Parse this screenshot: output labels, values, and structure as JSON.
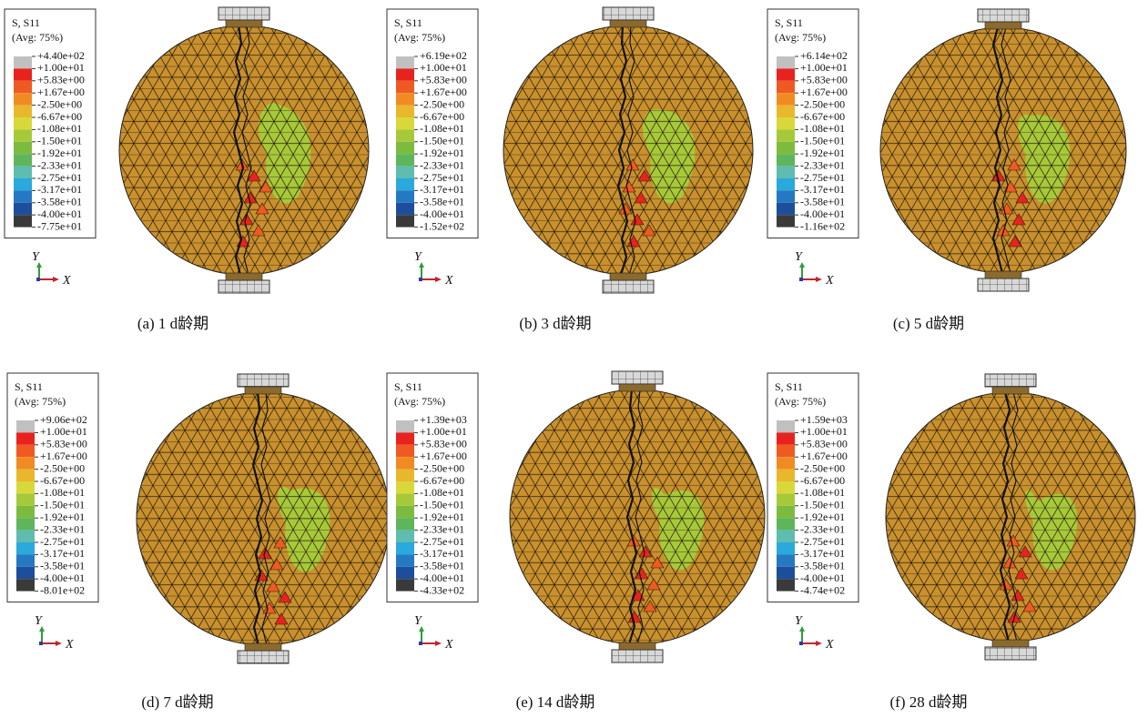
{
  "panels": [
    {
      "legend_title": "S, S11",
      "legend_subtitle": "(Avg: 75%)",
      "legend_labels": [
        "+4.40e+02",
        "+1.00e+01",
        "+5.83e+00",
        "+1.67e+00",
        "-2.50e+00",
        "-6.67e+00",
        "-1.08e+01",
        "-1.50e+01",
        "-1.92e+01",
        "-2.33e+01",
        "-2.75e+01",
        "-3.17e+01",
        "-3.58e+01",
        "-4.00e+01",
        "-7.75e+01"
      ],
      "axis_y": "Y",
      "axis_x": "X",
      "caption": "(a) 1 d龄期"
    },
    {
      "legend_title": "S, S11",
      "legend_subtitle": "(Avg: 75%)",
      "legend_labels": [
        "+6.19e+02",
        "+1.00e+01",
        "+5.83e+00",
        "+1.67e+00",
        "-2.50e+00",
        "-6.67e+00",
        "-1.08e+01",
        "-1.50e+01",
        "-1.92e+01",
        "-2.33e+01",
        "-2.75e+01",
        "-3.17e+01",
        "-3.58e+01",
        "-4.00e+01",
        "-1.52e+02"
      ],
      "axis_y": "Y",
      "axis_x": "X",
      "caption": "(b) 3 d龄期"
    },
    {
      "legend_title": "S, S11",
      "legend_subtitle": "(Avg: 75%)",
      "legend_labels": [
        "+6.14e+02",
        "+1.00e+01",
        "+5.83e+00",
        "+1.67e+00",
        "-2.50e+00",
        "-6.67e+00",
        "-1.08e+01",
        "-1.50e+01",
        "-1.92e+01",
        "-2.33e+01",
        "-2.75e+01",
        "-3.17e+01",
        "-3.58e+01",
        "-4.00e+01",
        "-1.16e+02"
      ],
      "axis_y": "Y",
      "axis_x": "X",
      "caption": "(c) 5 d龄期"
    },
    {
      "legend_title": "S, S11",
      "legend_subtitle": "(Avg: 75%)",
      "legend_labels": [
        "+9.06e+02",
        "+1.00e+01",
        "+5.83e+00",
        "+1.67e+00",
        "-2.50e+00",
        "-6.67e+00",
        "-1.08e+01",
        "-1.50e+01",
        "-1.92e+01",
        "-2.33e+01",
        "-2.75e+01",
        "-3.17e+01",
        "-3.58e+01",
        "-4.00e+01",
        "-8.01e+02"
      ],
      "axis_y": "Y",
      "axis_x": "X",
      "caption": "(d) 7 d龄期"
    },
    {
      "legend_title": "S, S11",
      "legend_subtitle": "(Avg: 75%)",
      "legend_labels": [
        "+1.39e+03",
        "+1.00e+01",
        "+5.83e+00",
        "+1.67e+00",
        "-2.50e+00",
        "-6.67e+00",
        "-1.08e+01",
        "-1.50e+01",
        "-1.92e+01",
        "-2.33e+01",
        "-2.75e+01",
        "-3.17e+01",
        "-3.58e+01",
        "-4.00e+01",
        "-4.33e+02"
      ],
      "axis_y": "Y",
      "axis_x": "X",
      "caption": "(e) 14 d龄期"
    },
    {
      "legend_title": "S, S11",
      "legend_subtitle": "(Avg: 75%)",
      "legend_labels": [
        "+1.59e+03",
        "+1.00e+01",
        "+5.83e+00",
        "+1.67e+00",
        "-2.50e+00",
        "-6.67e+00",
        "-1.08e+01",
        "-1.50e+01",
        "-1.92e+01",
        "-2.33e+01",
        "-2.75e+01",
        "-3.17e+01",
        "-3.58e+01",
        "-4.00e+01",
        "-4.74e+02"
      ],
      "axis_y": "Y",
      "axis_x": "X",
      "caption": "(f) 28 d龄期"
    }
  ]
}
